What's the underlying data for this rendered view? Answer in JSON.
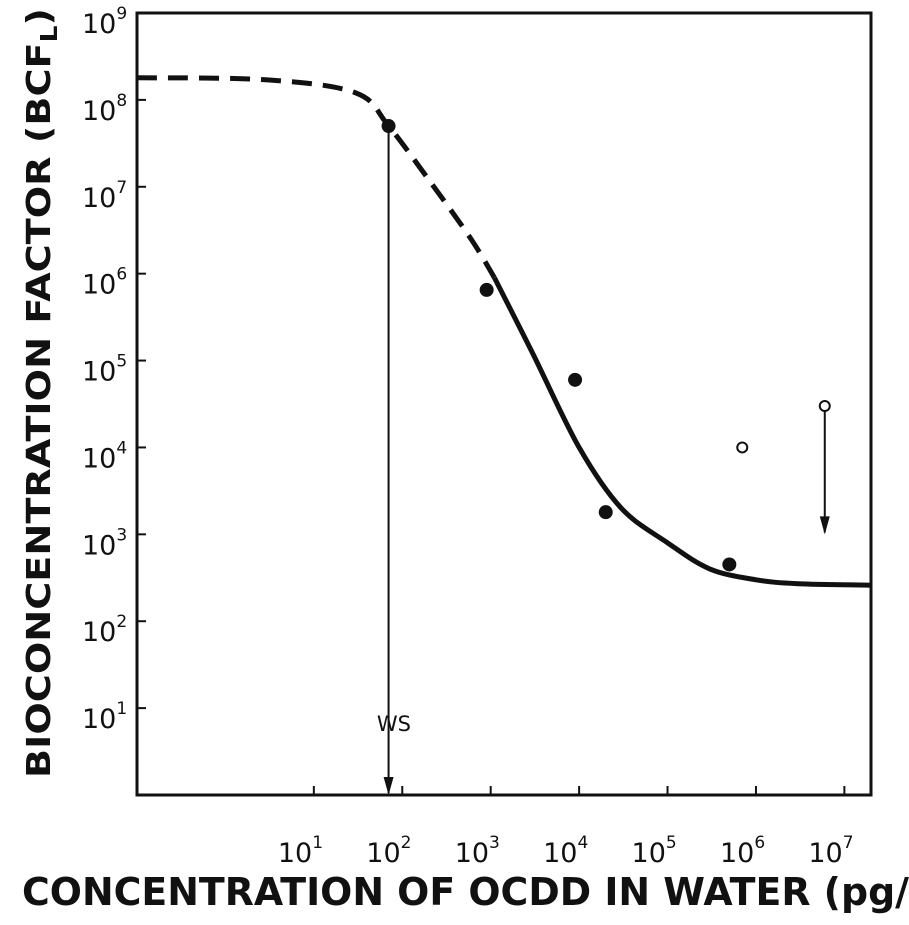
{
  "chart_data": {
    "type": "scatter",
    "title": "",
    "xlabel": "CONCENTRATION OF OCDD IN WATER (pg/",
    "ylabel": {
      "main": "BIOCONCENTRATION FACTOR (BCF",
      "subscript": "L",
      "close": ")"
    },
    "x_scale": "log",
    "y_scale": "log",
    "xlim": [
      0.1,
      20000000
    ],
    "ylim": [
      1,
      1000000000
    ],
    "x_tick_labels": [
      {
        "value": 10,
        "base": "10",
        "exp": "1"
      },
      {
        "value": 100,
        "base": "10",
        "exp": "2"
      },
      {
        "value": 1000,
        "base": "10",
        "exp": "3"
      },
      {
        "value": 10000,
        "base": "10",
        "exp": "4"
      },
      {
        "value": 100000,
        "base": "10",
        "exp": "5"
      },
      {
        "value": 1000000,
        "base": "10",
        "exp": "6"
      },
      {
        "value": 10000000,
        "base": "10",
        "exp": "7"
      }
    ],
    "y_tick_labels": [
      {
        "value": 10,
        "base": "10",
        "exp": "1"
      },
      {
        "value": 100,
        "base": "10",
        "exp": "2"
      },
      {
        "value": 1000,
        "base": "10",
        "exp": "3"
      },
      {
        "value": 10000,
        "base": "10",
        "exp": "4"
      },
      {
        "value": 100000,
        "base": "10",
        "exp": "5"
      },
      {
        "value": 1000000,
        "base": "10",
        "exp": "6"
      },
      {
        "value": 10000000,
        "base": "10",
        "exp": "7"
      },
      {
        "value": 100000000,
        "base": "10",
        "exp": "8"
      },
      {
        "value": 1000000000,
        "base": "10",
        "exp": "9"
      }
    ],
    "grid": false,
    "series": [
      {
        "marker": "filled-circle",
        "x": [
          70,
          900,
          9000,
          20000,
          500000
        ],
        "y": [
          50000000,
          650000,
          60000,
          1800,
          450
        ]
      },
      {
        "marker": "open-circle",
        "x": [
          700000,
          6000000
        ],
        "y": [
          10000,
          30000
        ]
      }
    ],
    "fit_curve": {
      "dashed_segment": {
        "x": [
          0.1,
          3,
          30,
          70,
          200,
          600,
          1100
        ],
        "y": [
          180000000,
          170000000,
          120000000,
          50000000,
          12000000,
          2500000,
          900000
        ]
      },
      "solid_segment": {
        "x": [
          1100,
          3000,
          10000,
          30000,
          100000,
          300000,
          1000000,
          3000000,
          20000000
        ],
        "y": [
          900000,
          120000,
          10000,
          2000,
          800,
          400,
          300,
          270,
          260
        ]
      }
    },
    "annotations": [
      {
        "text": "WS",
        "x": 200,
        "y": 10
      },
      {
        "arrow": "ws-arrow",
        "x": 70,
        "from_y": 50000000,
        "to_y": 1
      },
      {
        "arrow": "point-arrow",
        "x": 6000000,
        "from_y": 30000,
        "to_y": 1000
      }
    ]
  }
}
